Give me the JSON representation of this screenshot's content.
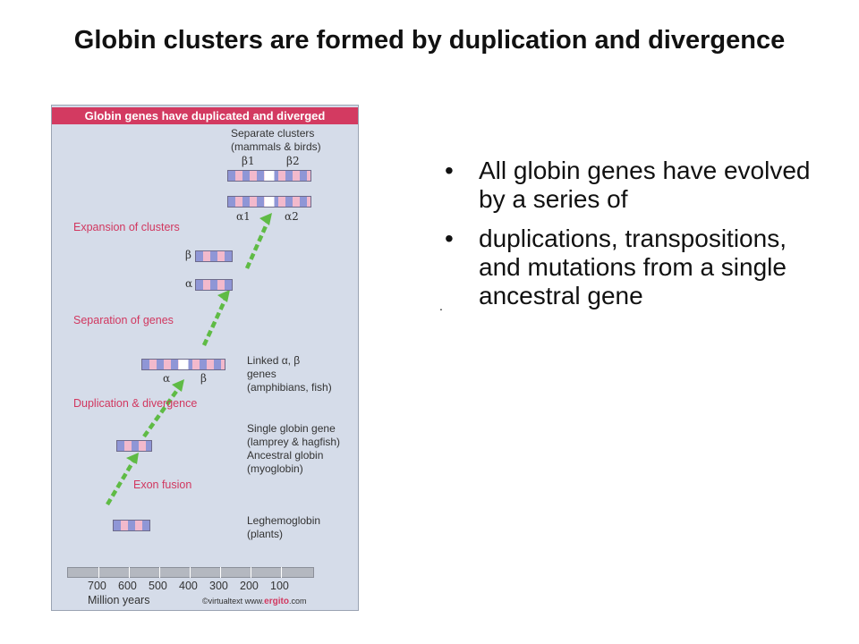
{
  "slide": {
    "title": "Globin clusters are formed by duplication and divergence",
    "bullets": [
      {
        "marker": "•",
        "text": "All globin genes have evolved by a series of"
      },
      {
        "marker": "•",
        "text": "duplications, transpositions, and mutations from a single ancestral gene"
      }
    ],
    "stray_mark": "."
  },
  "figure": {
    "header": "Globin genes have duplicated and diverged",
    "stages": {
      "expansion": "Expansion of clusters",
      "separation": "Separation of genes",
      "duplication": "Duplication & divergence",
      "exon_fusion": "Exon fusion"
    },
    "notes": {
      "separate_clusters": "Separate clusters",
      "separate_clusters_sub": "(mammals & birds)",
      "linked": "Linked α, β",
      "linked_genes": "genes",
      "linked_sub": "(amphibians, fish)",
      "single_globin": "Single globin gene",
      "single_globin_sub": "(lamprey & hagfish)",
      "ancestral": "Ancestral globin",
      "ancestral_sub": "(myoglobin)",
      "leghemoglobin": "Leghemoglobin",
      "leghemoglobin_sub": "(plants)"
    },
    "gene_labels": {
      "beta1": "β1",
      "beta2": "β2",
      "alpha1": "α1",
      "alpha2": "α2",
      "beta": "β",
      "alpha": "α",
      "alpha_linked": "α",
      "beta_linked": "β"
    },
    "timeline": {
      "ticks": [
        "700",
        "600",
        "500",
        "400",
        "300",
        "200",
        "100"
      ],
      "unit": "Million years",
      "credit_prefix": "©virtualtext www.",
      "credit_brand": "ergito",
      "credit_suffix": ".com"
    },
    "colors": {
      "header": "#d33a61",
      "stage_text": "#d1375f",
      "arrow": "#5fbb45",
      "gene_blue": "#8f96d6",
      "gene_pink": "#f2b9cc"
    }
  }
}
